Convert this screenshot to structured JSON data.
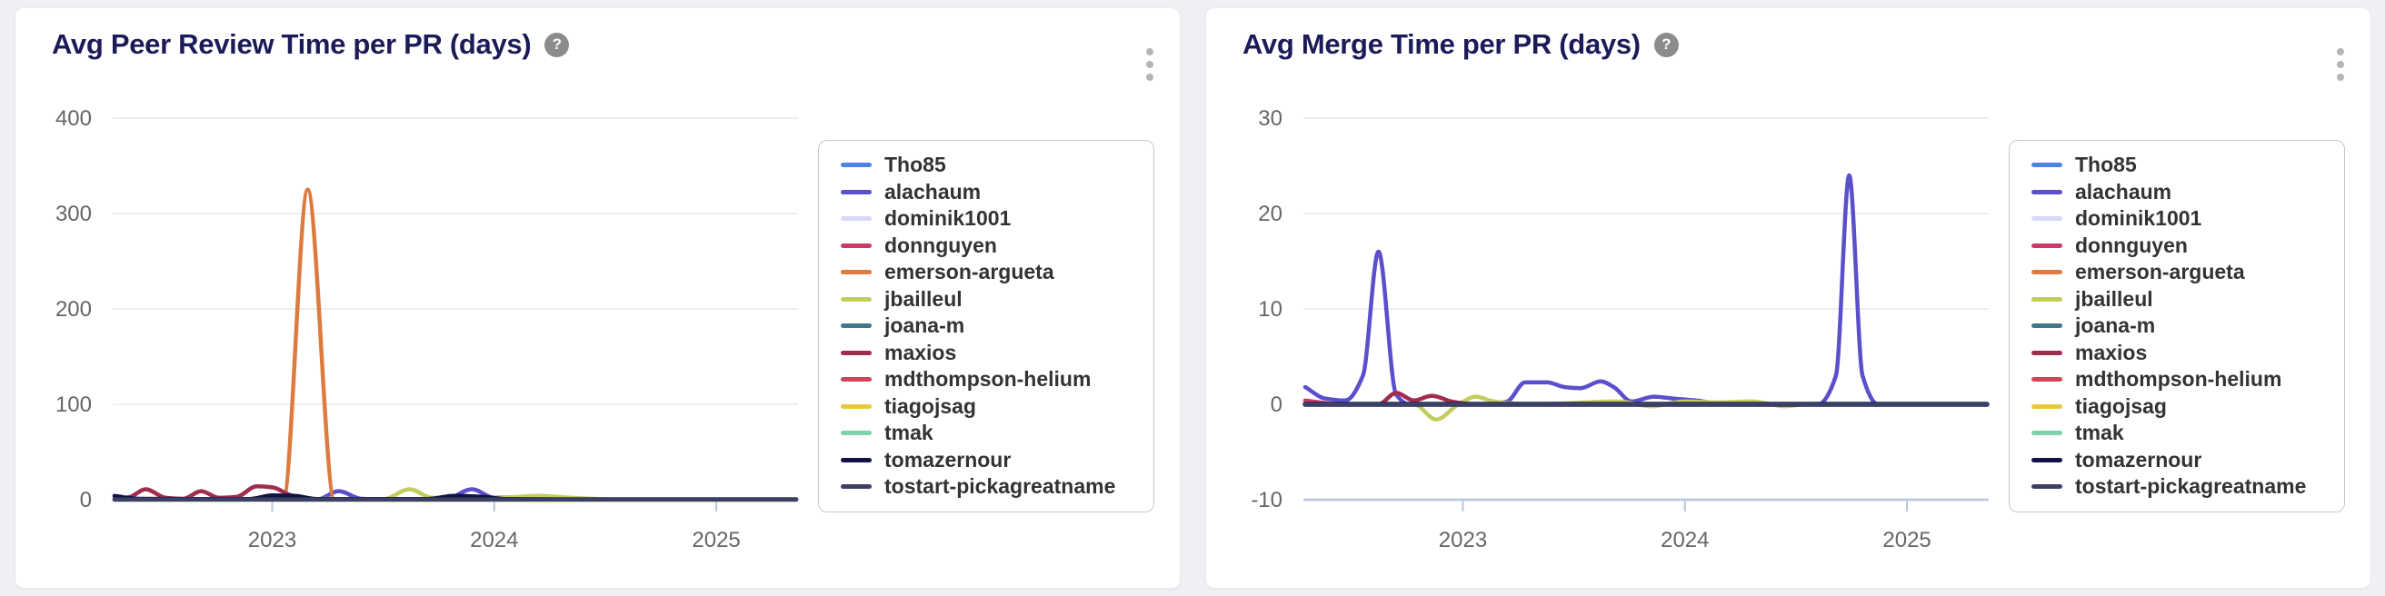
{
  "page": {
    "background": "#eef0f3"
  },
  "cards": [
    {
      "title": "Avg Peer Review Time per PR (days)",
      "help_glyph": "?",
      "menu_icon": "kebab-vertical"
    },
    {
      "title": "Avg Merge Time per PR (days)",
      "help_glyph": "?",
      "menu_icon": "kebab-vertical"
    }
  ],
  "colors": {
    "title": "#1b1c57",
    "grid": "#e9e9e9",
    "axis": "#b7c5de",
    "tick_label": "#666666",
    "legend_border": "#c9c9c9",
    "legend_text": "#333333"
  },
  "chart_data": [
    {
      "type": "line",
      "title": "Avg Peer Review Time per PR (days)",
      "xlabel": "",
      "ylabel": "",
      "x_ticks": [
        2023,
        2024,
        2025
      ],
      "x_range": [
        2022.29,
        2025.36
      ],
      "y_ticks": [
        400,
        300,
        200,
        100,
        0
      ],
      "ylim": [
        0,
        400
      ],
      "grid": true,
      "legend_position": "right",
      "series": [
        {
          "name": "Tho85",
          "color": "#4d82e8",
          "points": [
            [
              2022.29,
              0
            ],
            [
              2025.36,
              0
            ]
          ]
        },
        {
          "name": "alachaum",
          "color": "#5b4fcc",
          "points": [
            [
              2022.29,
              0
            ],
            [
              2023.2,
              0
            ],
            [
              2023.3,
              9
            ],
            [
              2023.4,
              1
            ],
            [
              2023.55,
              0
            ],
            [
              2023.78,
              0.5
            ],
            [
              2023.9,
              11
            ],
            [
              2024.0,
              2
            ],
            [
              2024.1,
              2.5
            ],
            [
              2024.22,
              0.5
            ],
            [
              2024.4,
              0
            ],
            [
              2025.36,
              0
            ]
          ]
        },
        {
          "name": "dominik1001",
          "color": "#d8d9f6",
          "points": [
            [
              2022.29,
              0
            ],
            [
              2025.36,
              0
            ]
          ]
        },
        {
          "name": "donnguyen",
          "color": "#ce3a68",
          "points": [
            [
              2022.29,
              0.5
            ],
            [
              2022.5,
              0
            ],
            [
              2025.36,
              0
            ]
          ]
        },
        {
          "name": "emerson-argueta",
          "color": "#dd7b3e",
          "points": [
            [
              2022.29,
              0
            ],
            [
              2023.05,
              0
            ],
            [
              2023.16,
              325
            ],
            [
              2023.28,
              0
            ],
            [
              2025.36,
              0
            ]
          ]
        },
        {
          "name": "jbailleul",
          "color": "#c3cd5c",
          "points": [
            [
              2022.29,
              0
            ],
            [
              2022.95,
              0
            ],
            [
              2023.05,
              4
            ],
            [
              2023.15,
              1
            ],
            [
              2023.5,
              0.5
            ],
            [
              2023.62,
              11
            ],
            [
              2023.72,
              2
            ],
            [
              2023.85,
              2.5
            ],
            [
              2024.0,
              1.5
            ],
            [
              2024.2,
              4
            ],
            [
              2024.35,
              2
            ],
            [
              2024.5,
              0.5
            ],
            [
              2024.6,
              0
            ],
            [
              2025.36,
              0
            ]
          ]
        },
        {
          "name": "joana-m",
          "color": "#41768c",
          "points": [
            [
              2022.29,
              0
            ],
            [
              2025.36,
              0
            ]
          ]
        },
        {
          "name": "maxios",
          "color": "#a02c4e",
          "points": [
            [
              2022.29,
              1
            ],
            [
              2022.36,
              3
            ],
            [
              2022.43,
              11
            ],
            [
              2022.52,
              2
            ],
            [
              2022.6,
              1
            ],
            [
              2022.68,
              9
            ],
            [
              2022.76,
              2
            ],
            [
              2022.84,
              3
            ],
            [
              2022.93,
              14
            ],
            [
              2023.0,
              13
            ],
            [
              2023.08,
              5
            ],
            [
              2023.16,
              0.5
            ],
            [
              2023.25,
              0
            ],
            [
              2025.36,
              0
            ]
          ]
        },
        {
          "name": "mdthompson-helium",
          "color": "#d04558",
          "points": [
            [
              2022.29,
              0
            ],
            [
              2025.36,
              0
            ]
          ]
        },
        {
          "name": "tiagojsag",
          "color": "#e7c93f",
          "points": [
            [
              2022.29,
              0
            ],
            [
              2025.36,
              0
            ]
          ]
        },
        {
          "name": "tmak",
          "color": "#7fd3a8",
          "points": [
            [
              2022.29,
              0
            ],
            [
              2025.36,
              0
            ]
          ]
        },
        {
          "name": "tomazernour",
          "color": "#111347",
          "points": [
            [
              2022.29,
              4
            ],
            [
              2022.4,
              1
            ],
            [
              2022.6,
              0.8
            ],
            [
              2022.9,
              0.8
            ],
            [
              2023.0,
              4.5
            ],
            [
              2023.1,
              4
            ],
            [
              2023.2,
              0.8
            ],
            [
              2023.7,
              0.8
            ],
            [
              2023.82,
              4
            ],
            [
              2023.95,
              3
            ],
            [
              2024.05,
              0.8
            ],
            [
              2024.3,
              0.5
            ],
            [
              2025.36,
              0.5
            ]
          ]
        },
        {
          "name": "tostart-pickagreatname",
          "color": "#3d4066",
          "points": [
            [
              2022.29,
              0.3
            ],
            [
              2025.36,
              0.3
            ]
          ]
        }
      ]
    },
    {
      "type": "line",
      "title": "Avg Merge Time per PR (days)",
      "xlabel": "",
      "ylabel": "",
      "x_ticks": [
        2023,
        2024,
        2025
      ],
      "x_range": [
        2022.29,
        2025.36
      ],
      "y_ticks": [
        30,
        20,
        10,
        0,
        -10
      ],
      "ylim": [
        -10,
        30
      ],
      "grid": true,
      "legend_position": "right",
      "series": [
        {
          "name": "Tho85",
          "color": "#4d82e8",
          "points": [
            [
              2022.29,
              0
            ],
            [
              2025.36,
              0
            ]
          ]
        },
        {
          "name": "alachaum",
          "color": "#5b4fcc",
          "points": [
            [
              2022.29,
              1.8
            ],
            [
              2022.38,
              0.6
            ],
            [
              2022.47,
              0.4
            ],
            [
              2022.55,
              3
            ],
            [
              2022.62,
              16
            ],
            [
              2022.7,
              1
            ],
            [
              2022.76,
              0
            ],
            [
              2023.1,
              0
            ],
            [
              2023.2,
              0.3
            ],
            [
              2023.28,
              2.3
            ],
            [
              2023.38,
              2.3
            ],
            [
              2023.46,
              1.8
            ],
            [
              2023.53,
              1.7
            ],
            [
              2023.62,
              2.4
            ],
            [
              2023.68,
              1.8
            ],
            [
              2023.76,
              0.3
            ],
            [
              2023.86,
              0.8
            ],
            [
              2023.95,
              0.6
            ],
            [
              2024.05,
              0.4
            ],
            [
              2024.15,
              0.1
            ],
            [
              2024.6,
              0
            ],
            [
              2024.68,
              3
            ],
            [
              2024.74,
              24
            ],
            [
              2024.8,
              3
            ],
            [
              2024.87,
              0
            ],
            [
              2025.36,
              0
            ]
          ]
        },
        {
          "name": "dominik1001",
          "color": "#d8d9f6",
          "points": [
            [
              2022.29,
              0
            ],
            [
              2025.36,
              0
            ]
          ]
        },
        {
          "name": "donnguyen",
          "color": "#ce3a68",
          "points": [
            [
              2022.29,
              0.4
            ],
            [
              2022.45,
              0
            ],
            [
              2025.36,
              0
            ]
          ]
        },
        {
          "name": "emerson-argueta",
          "color": "#dd7b3e",
          "points": [
            [
              2022.29,
              0
            ],
            [
              2025.36,
              0
            ]
          ]
        },
        {
          "name": "jbailleul",
          "color": "#c3cd5c",
          "points": [
            [
              2022.29,
              0
            ],
            [
              2022.78,
              0
            ],
            [
              2022.88,
              -1.6
            ],
            [
              2022.98,
              0
            ],
            [
              2023.06,
              0.8
            ],
            [
              2023.14,
              0.3
            ],
            [
              2023.3,
              0
            ],
            [
              2023.7,
              0.3
            ],
            [
              2023.85,
              -0.2
            ],
            [
              2024.0,
              0.3
            ],
            [
              2024.15,
              0.2
            ],
            [
              2024.3,
              0.3
            ],
            [
              2024.45,
              -0.2
            ],
            [
              2024.55,
              0
            ],
            [
              2025.36,
              0
            ]
          ]
        },
        {
          "name": "joana-m",
          "color": "#41768c",
          "points": [
            [
              2022.29,
              0
            ],
            [
              2025.36,
              0
            ]
          ]
        },
        {
          "name": "maxios",
          "color": "#a02c4e",
          "points": [
            [
              2022.29,
              0
            ],
            [
              2022.62,
              0
            ],
            [
              2022.7,
              1.2
            ],
            [
              2022.78,
              0.4
            ],
            [
              2022.86,
              0.9
            ],
            [
              2022.95,
              0.3
            ],
            [
              2023.05,
              0
            ],
            [
              2025.36,
              0
            ]
          ]
        },
        {
          "name": "mdthompson-helium",
          "color": "#d04558",
          "points": [
            [
              2022.29,
              0
            ],
            [
              2025.36,
              0
            ]
          ]
        },
        {
          "name": "tiagojsag",
          "color": "#e7c93f",
          "points": [
            [
              2022.29,
              0
            ],
            [
              2025.36,
              0
            ]
          ]
        },
        {
          "name": "tmak",
          "color": "#7fd3a8",
          "points": [
            [
              2022.29,
              0
            ],
            [
              2025.36,
              0
            ]
          ]
        },
        {
          "name": "tomazernour",
          "color": "#111347",
          "width": 5.5,
          "points": [
            [
              2022.29,
              0
            ],
            [
              2025.36,
              0
            ]
          ]
        },
        {
          "name": "tostart-pickagreatname",
          "color": "#3d4066",
          "points": [
            [
              2022.29,
              0
            ],
            [
              2025.36,
              0
            ]
          ]
        }
      ]
    }
  ]
}
